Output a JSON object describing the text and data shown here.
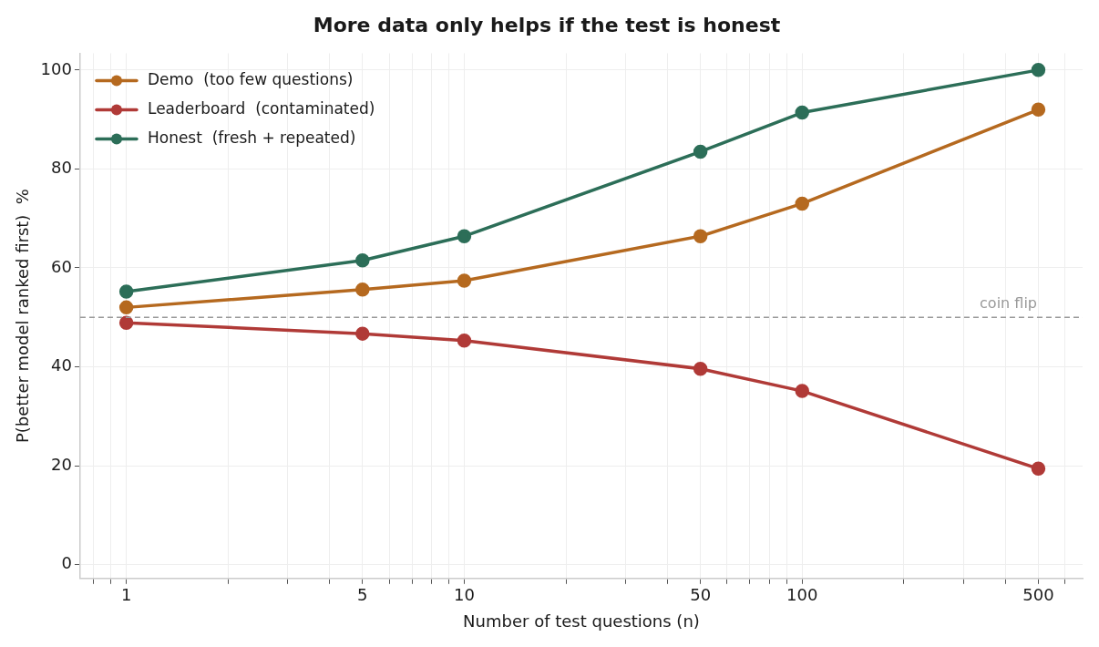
{
  "chart_data": {
    "type": "line",
    "title": "More data only helps if the test is honest",
    "xlabel": "Number of test questions (n)",
    "ylabel": "P(better model ranked first)  %",
    "x": [
      1,
      5,
      10,
      50,
      100,
      500
    ],
    "series": [
      {
        "name": "Demo  (too few questions)",
        "color": "#b5691f",
        "values": [
          52,
          55.6,
          57.4,
          66.4,
          73,
          92
        ]
      },
      {
        "name": "Leaderboard  (contaminated)",
        "color": "#b03a37",
        "values": [
          48.9,
          46.7,
          45.3,
          39.6,
          35.1,
          19.4
        ]
      },
      {
        "name": "Honest  (fresh + repeated)",
        "color": "#2c6e58",
        "values": [
          55.2,
          61.5,
          66.4,
          83.5,
          91.4,
          100
        ]
      }
    ],
    "log": "x",
    "xlim": [
      0.73,
      676
    ],
    "ylim": [
      -2.8,
      103.4
    ],
    "xticks": [
      {
        "value": 0.8,
        "label": null
      },
      {
        "value": 0.9,
        "label": null
      },
      1,
      {
        "value": 2,
        "label": null
      },
      {
        "value": 3,
        "label": null
      },
      {
        "value": 4,
        "label": null
      },
      5,
      {
        "value": 6,
        "label": null
      },
      {
        "value": 7,
        "label": null
      },
      {
        "value": 8,
        "label": null
      },
      {
        "value": 9,
        "label": null
      },
      10,
      {
        "value": 20,
        "label": null
      },
      {
        "value": 30,
        "label": null
      },
      {
        "value": 40,
        "label": null
      },
      50,
      {
        "value": 60,
        "label": null
      },
      {
        "value": 70,
        "label": null
      },
      {
        "value": 80,
        "label": null
      },
      {
        "value": 90,
        "label": null
      },
      100,
      {
        "value": 200,
        "label": null
      },
      {
        "value": 300,
        "label": null
      },
      {
        "value": 400,
        "label": null
      },
      500,
      {
        "value": 600,
        "label": null
      }
    ],
    "yticks": [
      0,
      20,
      40,
      60,
      80,
      100
    ],
    "ref_lines": [
      {
        "axis": "y",
        "value": 50,
        "label": "coin flip",
        "color": "#999999",
        "line_style": "dashed"
      }
    ],
    "grid": true,
    "legend": "top left",
    "marker": "circle",
    "line_style": "solid"
  }
}
